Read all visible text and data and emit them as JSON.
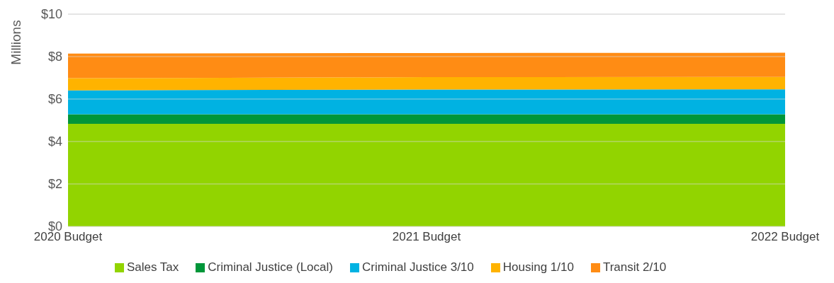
{
  "chart_data": {
    "type": "area",
    "stacked": true,
    "ylabel": "Millions",
    "categories": [
      "2020 Budget",
      "2021 Budget",
      "2022 Budget"
    ],
    "series": [
      {
        "name": "Sales Tax",
        "color": "#92d400",
        "values": [
          4.83,
          4.83,
          4.83
        ]
      },
      {
        "name": "Criminal Justice (Local)",
        "color": "#009639",
        "values": [
          0.45,
          0.45,
          0.45
        ]
      },
      {
        "name": "Criminal Justice 3/10",
        "color": "#00b2e2",
        "values": [
          1.13,
          1.17,
          1.18
        ]
      },
      {
        "name": "Housing 1/10",
        "color": "#ffb300",
        "values": [
          0.57,
          0.58,
          0.58
        ]
      },
      {
        "name": "Transit 2/10",
        "color": "#ff8c14",
        "values": [
          1.16,
          1.14,
          1.14
        ]
      }
    ],
    "ylim": [
      0,
      10
    ],
    "yticks": [
      {
        "value": 0,
        "label": "$0"
      },
      {
        "value": 2,
        "label": "$2"
      },
      {
        "value": 4,
        "label": "$4"
      },
      {
        "value": 6,
        "label": "$6"
      },
      {
        "value": 8,
        "label": "$8"
      },
      {
        "value": 10,
        "label": "$10"
      }
    ],
    "grid": "y",
    "legend": "bottom"
  }
}
